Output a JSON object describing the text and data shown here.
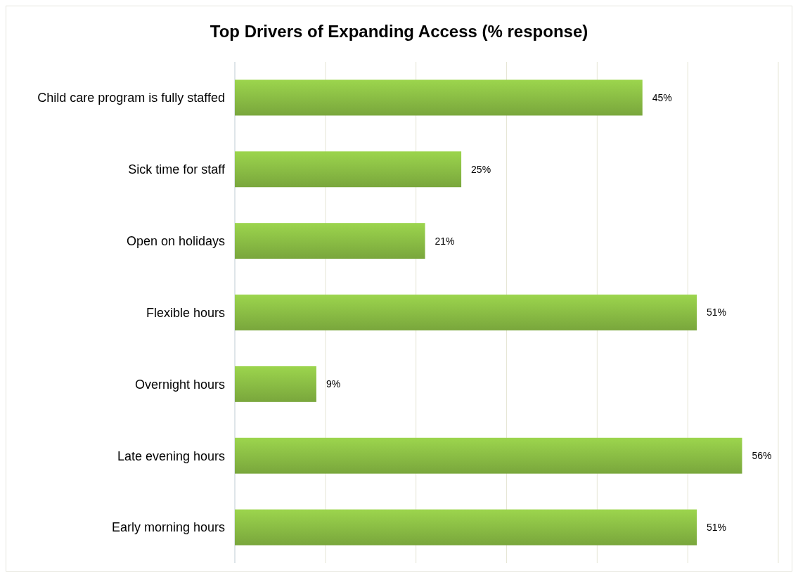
{
  "chart_data": {
    "type": "bar",
    "orientation": "horizontal",
    "title": "Top Drivers of Expanding Access (% response)",
    "categories": [
      "Child care program is fully staffed",
      "Sick time for staff",
      "Open on holidays",
      "Flexible hours",
      "Overnight hours",
      "Late evening hours",
      "Early morning hours"
    ],
    "values": [
      45,
      25,
      21,
      51,
      9,
      56,
      51
    ],
    "value_labels": [
      "45%",
      "25%",
      "21%",
      "51%",
      "9%",
      "56%",
      "51%"
    ],
    "color": "#8cbf45",
    "xlim": [
      0,
      60
    ],
    "xticks": [
      {
        "value": 0,
        "label": null
      },
      {
        "value": 10,
        "label": null
      },
      {
        "value": 20,
        "label": null
      },
      {
        "value": 30,
        "label": null
      },
      {
        "value": 40,
        "label": null
      },
      {
        "value": 50,
        "label": null
      },
      {
        "value": 60,
        "label": null
      }
    ],
    "tick_labels": "y",
    "grid": "x"
  }
}
